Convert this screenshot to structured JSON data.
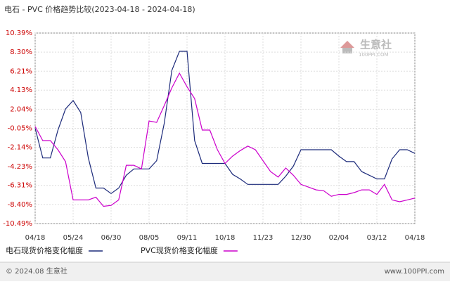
{
  "chart_data": {
    "type": "line",
    "title": "电石 - PVC 价格趋势比较(2023-04-18 - 2024-04-18)",
    "categories": [
      "04/18",
      null,
      null,
      null,
      null,
      "05/24",
      null,
      null,
      null,
      null,
      "06/30",
      null,
      null,
      null,
      null,
      "08/05",
      null,
      null,
      null,
      null,
      "09/11",
      null,
      null,
      null,
      null,
      "10/18",
      null,
      null,
      null,
      null,
      "11/23",
      null,
      null,
      null,
      null,
      "12/30",
      null,
      null,
      null,
      null,
      "02/04",
      null,
      null,
      null,
      null,
      "03/12",
      null,
      null,
      null,
      null,
      "04/18"
    ],
    "series": [
      {
        "name": "电石现货价格变化幅度",
        "color": "#1c2a7a",
        "values": [
          -0.05,
          -3.3,
          -3.3,
          -0.24,
          2.07,
          2.99,
          1.68,
          -3.3,
          -6.6,
          -6.6,
          -7.2,
          -6.6,
          -5.2,
          -4.5,
          -4.5,
          -4.5,
          -3.6,
          0.5,
          6.3,
          8.39,
          8.39,
          -1.4,
          -3.9,
          -3.9,
          -3.9,
          -3.9,
          -5.1,
          -5.6,
          -6.2,
          -6.2,
          -6.2,
          -6.2,
          -6.2,
          -5.3,
          -4.2,
          -2.4,
          -2.4,
          -2.4,
          -2.4,
          -2.4,
          -3.1,
          -3.7,
          -3.7,
          -4.8,
          -5.2,
          -5.6,
          -5.6,
          -3.4,
          -2.4,
          -2.4,
          -2.8
        ]
      },
      {
        "name": "PVC现货价格变化幅度",
        "color": "#cc00cc",
        "values": [
          0.15,
          -1.4,
          -1.4,
          -2.4,
          -3.7,
          -7.9,
          -7.9,
          -7.9,
          -7.6,
          -8.6,
          -8.5,
          -7.9,
          -4.1,
          -4.1,
          -4.5,
          0.75,
          0.6,
          2.45,
          4.38,
          5.99,
          4.5,
          3.2,
          -0.24,
          -0.24,
          -2.4,
          -3.9,
          -3.1,
          -2.5,
          -2.0,
          -2.4,
          -3.6,
          -4.8,
          -5.4,
          -4.4,
          -5.2,
          -6.2,
          -6.5,
          -6.8,
          -6.9,
          -7.5,
          -7.3,
          -7.3,
          -7.1,
          -6.8,
          -6.8,
          -7.3,
          -6.2,
          -7.9,
          -8.1,
          -7.9,
          -7.7
        ]
      }
    ],
    "ylim": [
      -10.49,
      10.39
    ],
    "yticks": [
      {
        "value": 10.39,
        "label": "10.39%"
      },
      {
        "value": 8.3,
        "label": "8.30%"
      },
      {
        "value": 6.21,
        "label": "6.21%"
      },
      {
        "value": 4.13,
        "label": "4.13%"
      },
      {
        "value": 2.04,
        "label": "2.04%"
      },
      {
        "value": -0.05,
        "label": "-0.05%"
      },
      {
        "value": -2.14,
        "label": "-2.14%"
      },
      {
        "value": -4.23,
        "label": "-4.23%"
      },
      {
        "value": -6.31,
        "label": "-6.31%"
      },
      {
        "value": -8.4,
        "label": "-8.40%"
      },
      {
        "value": -10.49,
        "label": "-10.49%"
      }
    ],
    "grid": true,
    "watermark": {
      "name": "生意社",
      "site": "100PPI.COM"
    },
    "footer": {
      "left": "© 2024.08 生意社",
      "right": "www.100PPI.com"
    }
  }
}
